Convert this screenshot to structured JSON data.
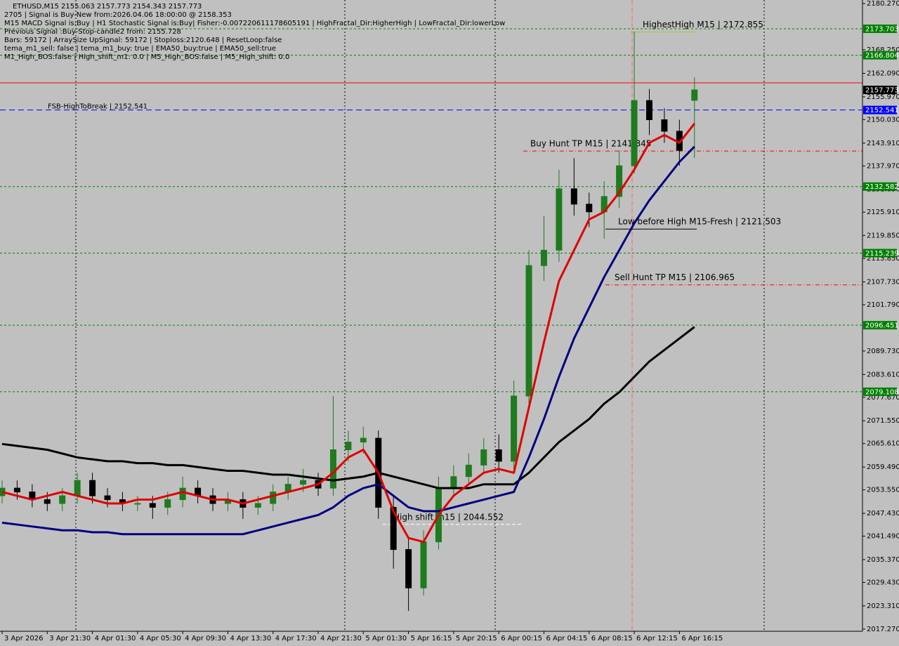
{
  "chart_data": {
    "type": "candlestick",
    "info_lines": [
      "ETHUSD,M15  2155.063 2157.773 2154.343 2157.773",
      "2705 | Signal is Buy-New from:2026.04.06 18:00:00 @ 2158.353",
      "M15 MACD Signal is:Buy | H1 Stochastic Signal is:Buy| Fisher:-0.007220611178605191 | HighFractal_Dir:HigherHigh | LowFractal_Dir:lowerLow",
      "Previous Signal :Buy-Stop-candle2 from: 2155.728",
      "Bars: 59172 | ArraySize UpSignal: 59172 | Stoploss:2120.648 | ResetLoop:false",
      "tema_m1_sell: false | tema_m1_buy: true | EMA50_buy:true | EMA50_sell:true",
      "M1_High_BOS:false | High_shift_m1: 0.0 | M5_High_BOS:false | M5_High_shift: 0.0"
    ],
    "categories": [
      "3 Apr 2026",
      null,
      null,
      "3 Apr 21:30",
      null,
      null,
      "4 Apr 01:30",
      null,
      null,
      "4 Apr 05:30",
      null,
      null,
      "4 Apr 09:30",
      null,
      null,
      "4 Apr 13:30",
      null,
      null,
      "4 Apr 17:30",
      null,
      null,
      "4 Apr 21:30",
      null,
      null,
      "5 Apr 01:30",
      null,
      null,
      "5 Apr 16:15",
      null,
      null,
      "5 Apr 20:15",
      null,
      null,
      "6 Apr 00:15",
      null,
      null,
      "6 Apr 04:15",
      null,
      null,
      "6 Apr 08:15",
      null,
      null,
      "6 Apr 12:15",
      null,
      null,
      "6 Apr 16:15",
      null
    ],
    "open": [
      2052,
      2054,
      2053,
      2051,
      2050,
      2052,
      2056,
      2052,
      2051,
      2050,
      2050,
      2049,
      2051,
      2054,
      2052,
      2050,
      2051,
      2049,
      2050,
      2053,
      2055,
      2056,
      2054,
      2064,
      2066,
      2067,
      2049,
      2038,
      2028,
      2040,
      2054,
      2057,
      2060,
      2064,
      2061,
      2078,
      2112,
      2116,
      2132,
      2128,
      2126,
      2130,
      2138,
      2155,
      2150,
      2147,
      2155.063
    ],
    "high": [
      2056,
      2056,
      2055,
      2053,
      2054,
      2058,
      2058,
      2054,
      2053,
      2052,
      2052,
      2053,
      2057,
      2056,
      2054,
      2053,
      2053,
      2052,
      2055,
      2057,
      2059,
      2058,
      2078,
      2069,
      2070,
      2069,
      2052,
      2041,
      2043,
      2057,
      2060,
      2063,
      2067,
      2068,
      2082,
      2116,
      2125,
      2137,
      2140,
      2131,
      2134,
      2142,
      2173,
      2158,
      2153,
      2150,
      2161
    ],
    "low": [
      2050,
      2051,
      2049,
      2048,
      2048,
      2050,
      2050,
      2049,
      2048,
      2048,
      2046,
      2047,
      2049,
      2050,
      2048,
      2048,
      2046,
      2047,
      2048,
      2051,
      2053,
      2052,
      2052,
      2061,
      2063,
      2046,
      2033,
      2022,
      2026,
      2038,
      2052,
      2055,
      2058,
      2058,
      2059,
      2076,
      2108,
      2113,
      2125,
      2122,
      2119,
      2127,
      2136,
      2146,
      2144,
      2138,
      2140
    ],
    "close": [
      2054,
      2053,
      2051,
      2050,
      2052,
      2056,
      2052,
      2051,
      2050,
      2050,
      2049,
      2051,
      2054,
      2052,
      2050,
      2051,
      2049,
      2050,
      2053,
      2055,
      2056,
      2054,
      2064,
      2066,
      2067,
      2049,
      2038,
      2028,
      2040,
      2054,
      2057,
      2060,
      2064,
      2061,
      2078,
      2112,
      2116,
      2132,
      2128,
      2126,
      2130,
      2138,
      2155,
      2150,
      2147,
      2142,
      2157.773
    ],
    "up_color": "#1e7b1e",
    "down_color": "#000000",
    "lines": [
      {
        "color": "#000000",
        "values": [
          2065.5,
          2065,
          2064.5,
          2064,
          2063,
          2062,
          2061.5,
          2061,
          2061,
          2060.5,
          2060.5,
          2060,
          2060,
          2059.5,
          2059,
          2058.5,
          2058.5,
          2058,
          2057.5,
          2057.5,
          2057,
          2056.5,
          2056,
          2056.5,
          2057,
          2058,
          2057,
          2056,
          2055,
          2054,
          2054,
          2054,
          2055,
          2055,
          2055,
          2058,
          2062,
          2066,
          2069,
          2072,
          2076,
          2079,
          2083,
          2087,
          2090,
          2093,
          2096
        ]
      },
      {
        "color": "#000080",
        "values": [
          2045,
          2044.5,
          2044,
          2043.5,
          2043,
          2043,
          2042.5,
          2042.5,
          2042,
          2042,
          2042,
          2042,
          2042,
          2042,
          2042,
          2042,
          2042,
          2043,
          2044,
          2045,
          2046,
          2047,
          2049,
          2052,
          2054,
          2055,
          2052,
          2049,
          2048,
          2048,
          2049,
          2050,
          2051,
          2052,
          2053,
          2062,
          2072,
          2083,
          2093,
          2101,
          2109,
          2116,
          2123,
          2129,
          2134,
          2139,
          2143
        ]
      },
      {
        "color": "#e00000",
        "values": [
          2053,
          2052,
          2051,
          2052,
          2053,
          2052,
          2051,
          2050,
          2050,
          2051,
          2051,
          2052,
          2053,
          2052,
          2051,
          2051,
          2050,
          2051,
          2052,
          2053,
          2054,
          2055,
          2058,
          2062,
          2064,
          2058,
          2048,
          2041,
          2040,
          2047,
          2052,
          2055,
          2058,
          2059,
          2058,
          2075,
          2092,
          2108,
          2116,
          2124,
          2126,
          2131,
          2137,
          2144,
          2146,
          2144,
          2149
        ]
      }
    ],
    "levels": [
      {
        "value": 2173.703,
        "color": "#008000"
      },
      {
        "value": 2166.804,
        "color": "#008000"
      },
      {
        "value": 2159.6,
        "color": "#ff0000"
      },
      {
        "value": 2152.541,
        "color": "#0000ff",
        "label": "FSB-HighToBreak | 2152.541"
      },
      {
        "value": 2132.582,
        "color": "#008000"
      },
      {
        "value": 2115.239,
        "color": "#008000"
      },
      {
        "value": 2096.451,
        "color": "#008000"
      },
      {
        "value": 2079.108,
        "color": "#008000"
      }
    ],
    "price": 2157.773,
    "annotations": [
      {
        "label": "HighestHigh   M15 | 2172.855",
        "value": 2172.855,
        "color": "#9acd32"
      },
      {
        "label": "Buy Hunt TP M15 | 2141.845",
        "value": 2141.845,
        "color": "#ff0000"
      },
      {
        "label": "Low before High   M15-Fresh | 2121.503",
        "value": 2121.503,
        "color": "#000000"
      },
      {
        "label": "Sell Hunt TP M15 | 2106.965",
        "value": 2106.965,
        "color": "#ff0000"
      },
      {
        "label": "High shift m15 | 2044.552",
        "value": 2044.552,
        "color": "#ffffff"
      }
    ],
    "ylim": [
      2016.7,
      2181.2
    ],
    "yticks": [
      {
        "value": 2180.27,
        "label": "2180.270"
      },
      {
        "value": 2168.25,
        "label": "2168.250"
      },
      {
        "value": 2162.09,
        "label": "2162.090"
      },
      {
        "value": 2155.97,
        "label": "2155.970"
      },
      {
        "value": 2150.03,
        "label": "2150.030"
      },
      {
        "value": 2143.91,
        "label": "2143.910"
      },
      {
        "value": 2137.97,
        "label": "2137.970"
      },
      {
        "value": 2131.85,
        "label": "2131.850"
      },
      {
        "value": 2125.91,
        "label": "2125.910"
      },
      {
        "value": 2119.85,
        "label": "2119.850"
      },
      {
        "value": 2113.85,
        "label": "2113.850"
      },
      {
        "value": 2107.73,
        "label": "2107.730"
      },
      {
        "value": 2101.79,
        "label": "2101.790"
      },
      {
        "value": 2089.73,
        "label": "2089.730"
      },
      {
        "value": 2083.61,
        "label": "2083.610"
      },
      {
        "value": 2077.67,
        "label": "2077.670"
      },
      {
        "value": 2071.55,
        "label": "2071.550"
      },
      {
        "value": 2065.61,
        "label": "2065.610"
      },
      {
        "value": 2059.49,
        "label": "2059.490"
      },
      {
        "value": 2053.55,
        "label": "2053.550"
      },
      {
        "value": 2047.43,
        "label": "2047.430"
      },
      {
        "value": 2041.49,
        "label": "2041.490"
      },
      {
        "value": 2035.37,
        "label": "2035.370"
      },
      {
        "value": 2029.43,
        "label": "2029.430"
      },
      {
        "value": 2023.31,
        "label": "2023.310"
      },
      {
        "value": 2017.27,
        "label": "2017.270"
      }
    ]
  }
}
